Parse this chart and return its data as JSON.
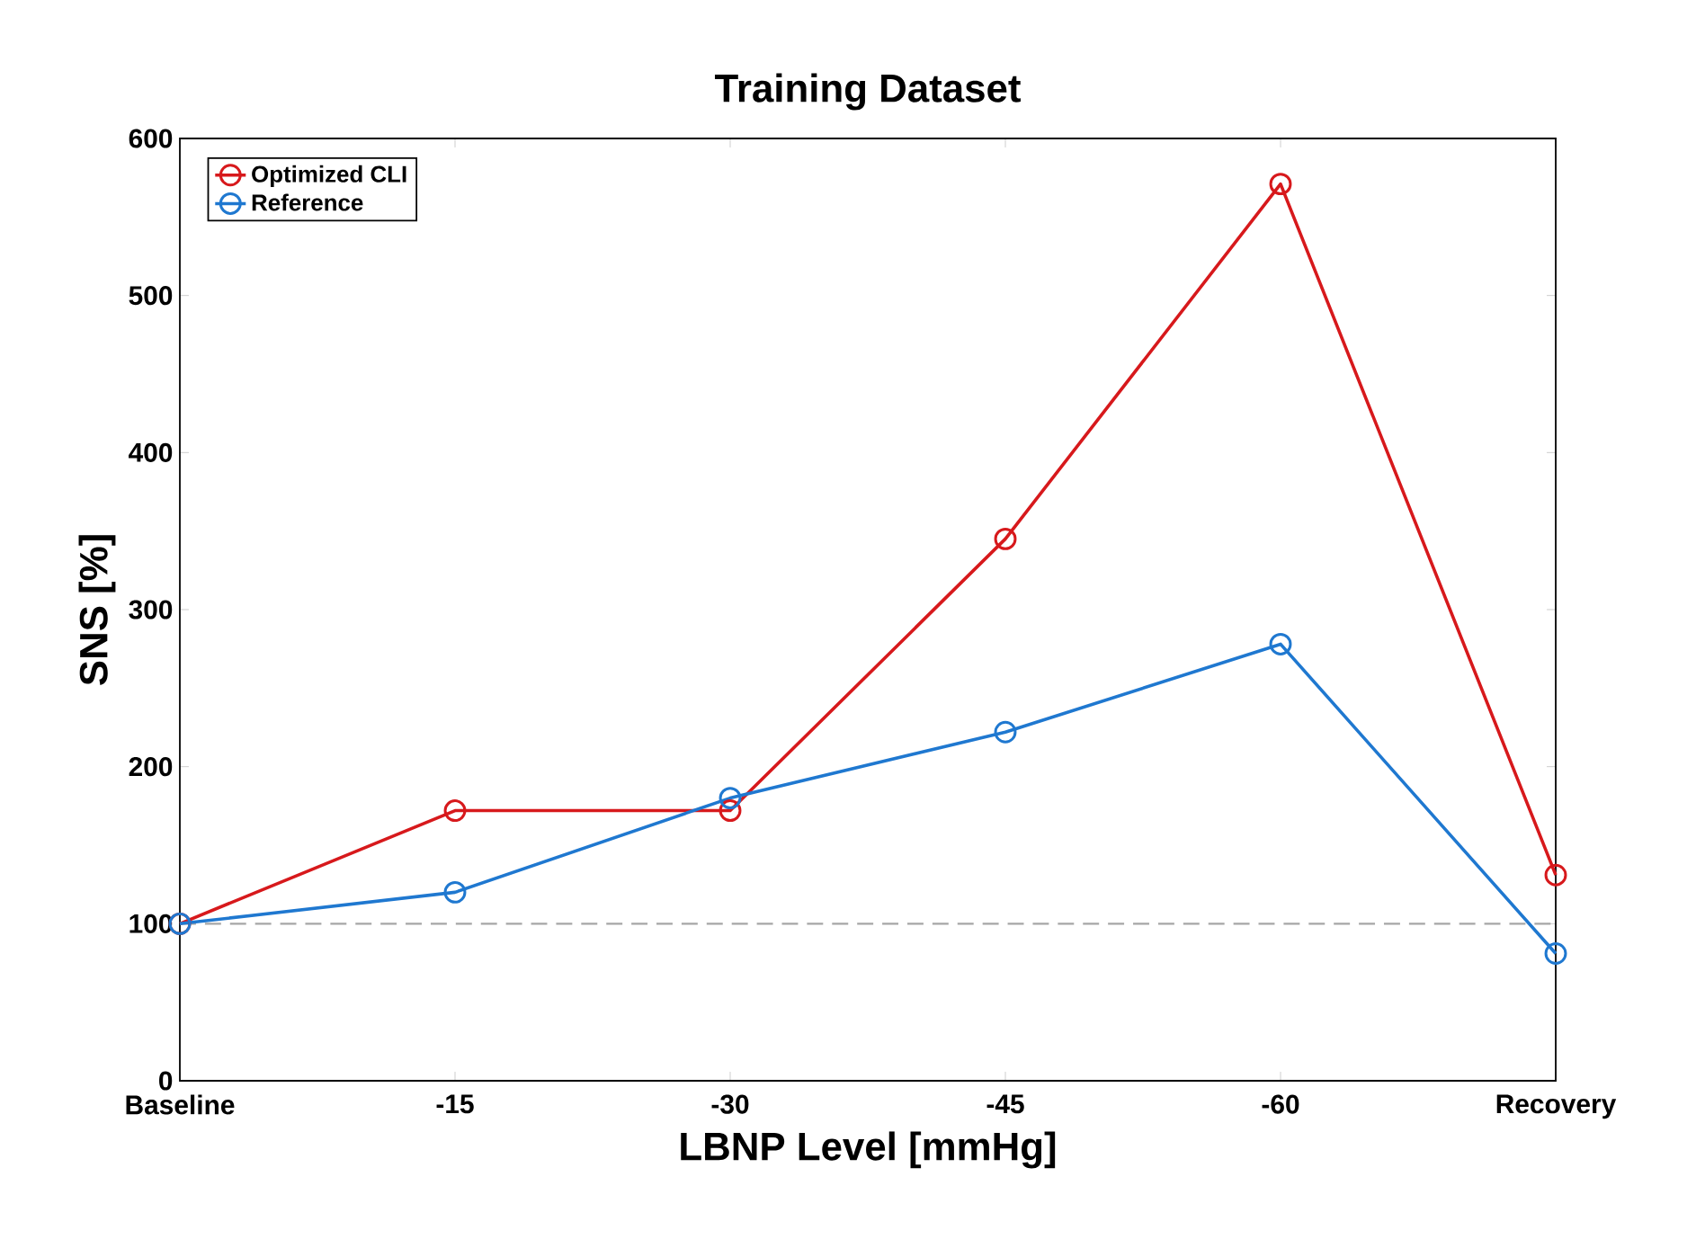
{
  "chart_data": {
    "type": "line",
    "title": "Training Dataset",
    "xlabel": "LBNP Level [mmHg]",
    "ylabel": "SNS [%]",
    "categories": [
      "Baseline",
      "-15",
      "-30",
      "-45",
      "-60",
      "Recovery"
    ],
    "series": [
      {
        "name": "Optimized CLI",
        "color": "#d7191c",
        "values": [
          100,
          172,
          172,
          345,
          571,
          131
        ]
      },
      {
        "name": "Reference",
        "color": "#1f78d0",
        "values": [
          100,
          120,
          180,
          222,
          278,
          81
        ]
      }
    ],
    "ylim": [
      0,
      600
    ],
    "yticks": [
      0,
      100,
      200,
      300,
      400,
      500,
      600
    ],
    "grid": false,
    "legend": "top left",
    "marker": "circle",
    "line_style": "solid",
    "ref_lines": [
      {
        "axis": "y",
        "value": 100,
        "color": "#a6a6a6",
        "line_style": "dashed"
      }
    ]
  }
}
